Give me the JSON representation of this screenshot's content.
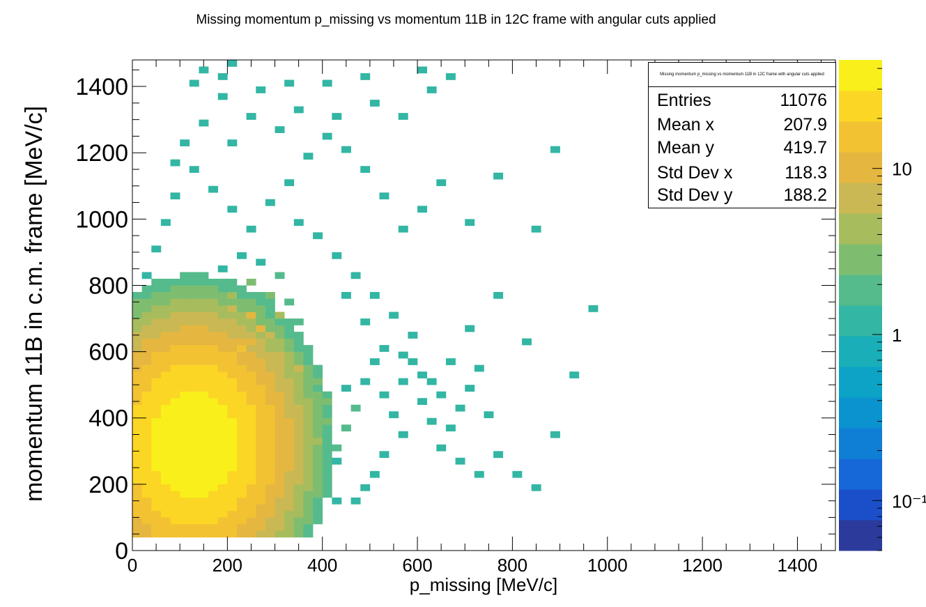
{
  "title": "Missing momentum p_missing vs momentum 11B in 12C frame with angular cuts applied",
  "stats": {
    "title": "Missing momentum p_missing vs momentum 11B in 12C frame with angular cuts applied",
    "rows": [
      {
        "key": "Entries",
        "value": "11076"
      },
      {
        "key": "Mean x",
        "value": "207.9"
      },
      {
        "key": "Mean y",
        "value": "419.7"
      },
      {
        "key": "Std Dev x",
        "value": "118.3"
      },
      {
        "key": "Std Dev y",
        "value": "188.2"
      }
    ]
  },
  "colors": {
    "palette": [
      "#2b3a9b",
      "#1b4fc9",
      "#1668d9",
      "#0f7fd6",
      "#0b93d0",
      "#0ca3c6",
      "#1aaeb8",
      "#33b6a4",
      "#55bb8c",
      "#7ebd70",
      "#a7bc5d",
      "#c9b853",
      "#e5b740",
      "#f3c232",
      "#fbd624",
      "#f9ef1a"
    ]
  },
  "chart_data": {
    "type": "heatmap",
    "title": "Missing momentum p_missing vs momentum 11B in 12C frame with angular cuts applied",
    "xlabel": "p_missing [MeV/c]",
    "ylabel": "momentum 11B in c.m. frame [MeV/c]",
    "xlim": [
      0,
      1480
    ],
    "ylim": [
      0,
      1480
    ],
    "x_ticks": [
      0,
      200,
      400,
      600,
      800,
      1000,
      1200,
      1400
    ],
    "y_ticks": [
      0,
      200,
      400,
      600,
      800,
      1000,
      1200,
      1400
    ],
    "z_scale": "log",
    "z_range": [
      0.05,
      45
    ],
    "z_ticks": [
      {
        "value": 10,
        "label": "10"
      },
      {
        "value": 1,
        "label": "1"
      },
      {
        "value": 0.1,
        "label": "10⁻¹"
      }
    ],
    "bin_width": [
      20,
      20
    ],
    "distribution": {
      "peak": [
        130,
        320
      ],
      "peak_count": 40,
      "total_entries": 11076
    },
    "cells": [
      [
        120,
        320,
        40
      ],
      [
        140,
        320,
        38
      ],
      [
        160,
        340,
        35
      ],
      [
        120,
        300,
        34
      ],
      [
        140,
        300,
        36
      ],
      [
        100,
        320,
        30
      ],
      [
        160,
        300,
        32
      ],
      [
        140,
        360,
        30
      ],
      [
        180,
        360,
        28
      ],
      [
        160,
        380,
        30
      ],
      [
        120,
        280,
        28
      ],
      [
        100,
        300,
        26
      ],
      [
        180,
        420,
        26
      ],
      [
        160,
        440,
        25
      ],
      [
        200,
        400,
        22
      ],
      [
        200,
        460,
        20
      ],
      [
        220,
        500,
        18
      ],
      [
        200,
        540,
        18
      ],
      [
        180,
        580,
        16
      ],
      [
        220,
        600,
        15
      ],
      [
        240,
        620,
        12
      ],
      [
        260,
        660,
        10
      ],
      [
        240,
        700,
        9
      ],
      [
        200,
        720,
        8
      ],
      [
        160,
        700,
        8
      ],
      [
        120,
        640,
        9
      ],
      [
        100,
        600,
        10
      ],
      [
        80,
        560,
        12
      ],
      [
        80,
        480,
        14
      ],
      [
        60,
        420,
        12
      ],
      [
        60,
        360,
        11
      ],
      [
        60,
        300,
        10
      ],
      [
        80,
        240,
        12
      ],
      [
        100,
        220,
        14
      ],
      [
        140,
        200,
        13
      ],
      [
        180,
        220,
        14
      ],
      [
        220,
        240,
        12
      ],
      [
        260,
        260,
        11
      ],
      [
        300,
        300,
        10
      ],
      [
        320,
        360,
        9
      ],
      [
        300,
        420,
        10
      ],
      [
        320,
        480,
        8
      ],
      [
        340,
        540,
        6
      ],
      [
        300,
        580,
        7
      ],
      [
        280,
        640,
        6
      ],
      [
        300,
        700,
        4
      ],
      [
        280,
        760,
        3
      ],
      [
        240,
        800,
        3
      ],
      [
        200,
        760,
        5
      ],
      [
        140,
        740,
        4
      ],
      [
        100,
        700,
        4
      ],
      [
        60,
        640,
        3
      ],
      [
        40,
        560,
        3
      ],
      [
        40,
        460,
        4
      ],
      [
        40,
        380,
        3
      ],
      [
        40,
        300,
        2
      ],
      [
        60,
        220,
        3
      ],
      [
        80,
        180,
        4
      ],
      [
        120,
        160,
        5
      ],
      [
        160,
        160,
        5
      ],
      [
        200,
        180,
        5
      ],
      [
        240,
        180,
        4
      ],
      [
        280,
        200,
        4
      ],
      [
        320,
        220,
        4
      ],
      [
        360,
        260,
        4
      ],
      [
        380,
        320,
        4
      ],
      [
        400,
        380,
        3
      ],
      [
        400,
        440,
        3
      ],
      [
        380,
        500,
        3
      ],
      [
        360,
        560,
        2
      ],
      [
        340,
        620,
        2
      ],
      [
        340,
        680,
        2
      ],
      [
        320,
        740,
        2
      ],
      [
        300,
        820,
        2
      ],
      [
        260,
        860,
        1
      ],
      [
        220,
        880,
        1
      ],
      [
        180,
        840,
        1
      ],
      [
        120,
        820,
        1
      ],
      [
        80,
        780,
        1
      ],
      [
        60,
        740,
        1
      ],
      [
        420,
        300,
        2
      ],
      [
        440,
        360,
        2
      ],
      [
        460,
        420,
        2
      ],
      [
        440,
        480,
        1
      ],
      [
        420,
        260,
        1
      ],
      [
        400,
        220,
        2
      ],
      [
        380,
        180,
        2
      ],
      [
        340,
        160,
        2
      ],
      [
        300,
        140,
        2
      ],
      [
        260,
        140,
        2
      ],
      [
        220,
        120,
        2
      ],
      [
        180,
        120,
        2
      ],
      [
        140,
        120,
        2
      ],
      [
        100,
        140,
        2
      ],
      [
        60,
        160,
        1
      ],
      [
        40,
        200,
        1
      ],
      [
        20,
        260,
        1
      ],
      [
        20,
        360,
        1
      ],
      [
        20,
        460,
        1
      ],
      [
        20,
        560,
        1
      ],
      [
        480,
        500,
        1
      ],
      [
        500,
        560,
        1
      ],
      [
        520,
        460,
        1
      ],
      [
        540,
        400,
        1
      ],
      [
        560,
        340,
        1
      ],
      [
        520,
        280,
        1
      ],
      [
        500,
        220,
        1
      ],
      [
        480,
        180,
        1
      ],
      [
        460,
        140,
        1
      ],
      [
        420,
        140,
        1
      ],
      [
        360,
        120,
        1
      ],
      [
        320,
        100,
        1
      ],
      [
        280,
        100,
        1
      ],
      [
        240,
        100,
        1
      ],
      [
        200,
        80,
        1
      ],
      [
        160,
        60,
        1
      ],
      [
        120,
        60,
        1
      ],
      [
        80,
        80,
        1
      ],
      [
        40,
        120,
        1
      ],
      [
        560,
        500,
        1
      ],
      [
        580,
        560,
        1
      ],
      [
        600,
        440,
        1
      ],
      [
        620,
        380,
        1
      ],
      [
        640,
        300,
        1
      ],
      [
        660,
        360,
        1
      ],
      [
        680,
        420,
        1
      ],
      [
        700,
        480,
        1
      ],
      [
        720,
        540,
        1
      ],
      [
        740,
        400,
        1
      ],
      [
        760,
        280,
        1
      ],
      [
        800,
        220,
        1
      ],
      [
        840,
        180,
        1
      ],
      [
        880,
        340,
        1
      ],
      [
        920,
        520,
        1
      ],
      [
        960,
        720,
        1
      ],
      [
        840,
        960,
        1
      ],
      [
        880,
        1200,
        1
      ],
      [
        760,
        1120,
        1
      ],
      [
        700,
        980,
        1
      ],
      [
        640,
        1100,
        1
      ],
      [
        600,
        1020,
        1
      ],
      [
        560,
        960,
        1
      ],
      [
        520,
        1060,
        1
      ],
      [
        480,
        1140,
        1
      ],
      [
        440,
        1200,
        1
      ],
      [
        400,
        1240,
        1
      ],
      [
        360,
        1180,
        1
      ],
      [
        320,
        1100,
        1
      ],
      [
        280,
        1040,
        1
      ],
      [
        240,
        960,
        1
      ],
      [
        200,
        1020,
        1
      ],
      [
        160,
        1080,
        1
      ],
      [
        120,
        1140,
        1
      ],
      [
        80,
        1060,
        1
      ],
      [
        60,
        980,
        1
      ],
      [
        40,
        900,
        1
      ],
      [
        20,
        820,
        1
      ],
      [
        20,
        700,
        1
      ],
      [
        300,
        1260,
        1
      ],
      [
        340,
        1320,
        1
      ],
      [
        420,
        1300,
        1
      ],
      [
        500,
        1340,
        1
      ],
      [
        560,
        1300,
        1
      ],
      [
        620,
        1380,
        1
      ],
      [
        660,
        1420,
        1
      ],
      [
        600,
        1440,
        1
      ],
      [
        480,
        1420,
        1
      ],
      [
        400,
        1400,
        1
      ],
      [
        320,
        1400,
        1
      ],
      [
        260,
        1380,
        1
      ],
      [
        200,
        1460,
        1
      ],
      [
        180,
        1420,
        1
      ],
      [
        140,
        1440,
        1
      ],
      [
        120,
        1400,
        1
      ],
      [
        180,
        1360,
        1
      ],
      [
        140,
        1280,
        1
      ],
      [
        100,
        1220,
        1
      ],
      [
        80,
        1160,
        1
      ],
      [
        200,
        1220,
        1
      ],
      [
        240,
        1300,
        1
      ],
      [
        700,
        660,
        1
      ],
      [
        760,
        760,
        1
      ],
      [
        820,
        620,
        1
      ],
      [
        660,
        560,
        1
      ],
      [
        620,
        500,
        1
      ],
      [
        580,
        640,
        1
      ],
      [
        540,
        700,
        1
      ],
      [
        500,
        760,
        1
      ],
      [
        460,
        820,
        1
      ],
      [
        420,
        880,
        1
      ],
      [
        380,
        940,
        1
      ],
      [
        340,
        980,
        1
      ],
      [
        440,
        760,
        1
      ],
      [
        480,
        680,
        1
      ],
      [
        520,
        600,
        1
      ],
      [
        560,
        580,
        1
      ],
      [
        600,
        520,
        1
      ],
      [
        640,
        460,
        1
      ],
      [
        680,
        260,
        1
      ],
      [
        720,
        220,
        1
      ]
    ]
  }
}
